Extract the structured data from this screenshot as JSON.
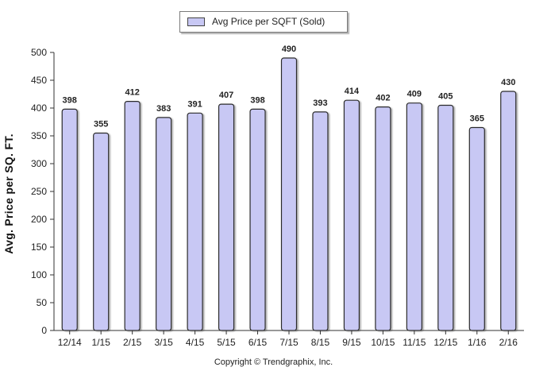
{
  "chart_data": {
    "type": "bar",
    "categories": [
      "12/14",
      "1/15",
      "2/15",
      "3/15",
      "4/15",
      "5/15",
      "6/15",
      "7/15",
      "8/15",
      "9/15",
      "10/15",
      "11/15",
      "12/15",
      "1/16",
      "2/16"
    ],
    "series": [
      {
        "name": "Avg Price per SQFT (Sold)",
        "values": [
          398,
          355,
          412,
          383,
          391,
          407,
          398,
          490,
          393,
          414,
          402,
          409,
          405,
          365,
          430
        ],
        "color": "#c8c8f4"
      }
    ],
    "ylabel": "Avg. Price per SQ. FT.",
    "ylim": [
      0,
      500
    ],
    "yticks": [
      0,
      50,
      100,
      150,
      200,
      250,
      300,
      350,
      400,
      450,
      500
    ],
    "grid": false,
    "legend_position": "top-center",
    "data_labels": true
  },
  "footer": {
    "copyright": "Copyright © Trendgraphix, Inc."
  }
}
